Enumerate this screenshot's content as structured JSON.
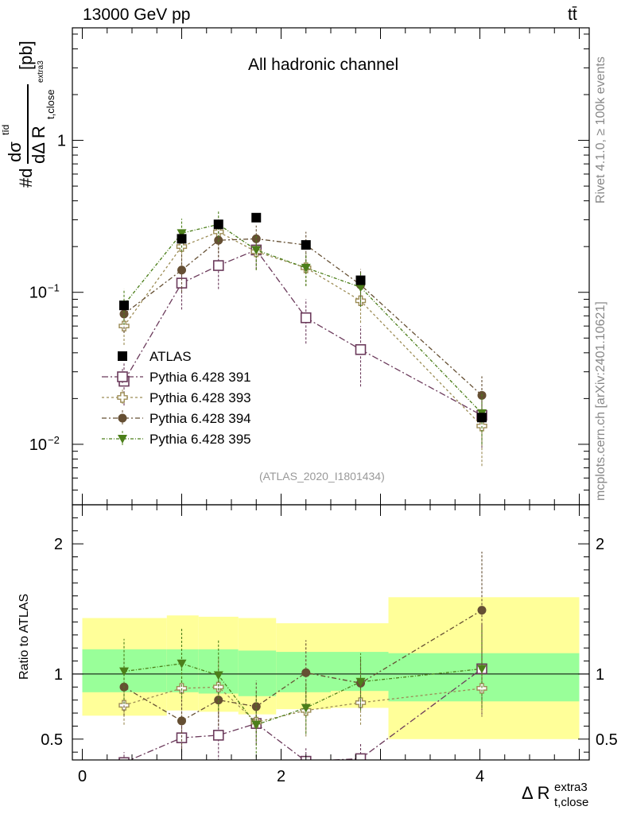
{
  "header": {
    "energy": "13000 GeV pp",
    "process": "tt̄",
    "channel": "All hadronic channel",
    "analysis_tag": "(ATLAS_2020_I1801434)"
  },
  "side": {
    "rivet": "Rivet 4.1.0, ≥ 100k events",
    "mcplots": "mcplots.cern.ch [arXiv:2401.10621]"
  },
  "ylabel": {
    "num": "dσ",
    "num_sup": "tīd",
    "prefix": "#d",
    "den": "dΔ R",
    "den_sub": "t,close",
    "den_subsup": "extra3",
    "unit": "[pb]"
  },
  "xlabel": {
    "main": "Δ R",
    "sup": "extra3",
    "sub": "t,close"
  },
  "ratio_ylabel": "Ratio to ATLAS",
  "colors": {
    "data": "#000000",
    "p391": "#6b3a5b",
    "p393": "#9c8c55",
    "p394": "#654f33",
    "p395": "#4c7f1a",
    "band_inner": "#99ff99",
    "band_outer": "#ffff99"
  },
  "chart_data": [
    {
      "type": "scatter",
      "title": "All hadronic channel",
      "xlabel": "Δ R t,close extra3",
      "ylabel": "#d dσ / dΔ R [pb]",
      "yscale": "log",
      "xlim": [
        -0.1,
        5.1
      ],
      "ylim": [
        0.004,
        5.5
      ],
      "yticks": [
        {
          "value": 1,
          "label": "1"
        },
        {
          "value": 0.1,
          "label": "10",
          "exp": "−1"
        },
        {
          "value": 0.01,
          "label": "10",
          "exp": "−2"
        }
      ],
      "legend_position": "middle-left",
      "series": [
        {
          "name": "ATLAS",
          "marker": "filled-square",
          "color_key": "data",
          "x": [
            0.42,
            1.0,
            1.37,
            1.75,
            2.25,
            2.8,
            4.02
          ],
          "y": [
            0.082,
            0.225,
            0.28,
            0.31,
            0.205,
            0.12,
            0.015
          ]
        },
        {
          "name": "Pythia 6.428 391",
          "marker": "open-square",
          "color_key": "p391",
          "dash": "8,3,2,3",
          "x": [
            0.42,
            1.0,
            1.37,
            1.75,
            2.25,
            2.8,
            4.02
          ],
          "y": [
            0.026,
            0.115,
            0.15,
            0.19,
            0.068,
            0.042,
            0.0155
          ],
          "err": [
            0.008,
            0.038,
            0.045,
            0.048,
            0.022,
            0.018,
            0.006
          ]
        },
        {
          "name": "Pythia 6.428 393",
          "marker": "open-cross",
          "color_key": "p393",
          "dash": "3,3",
          "x": [
            0.42,
            1.0,
            1.37,
            1.75,
            2.25,
            2.8,
            4.02
          ],
          "y": [
            0.06,
            0.2,
            0.25,
            0.185,
            0.145,
            0.088,
            0.0132
          ],
          "err": [
            0.015,
            0.05,
            0.06,
            0.045,
            0.035,
            0.025,
            0.006
          ]
        },
        {
          "name": "Pythia 6.428 394",
          "marker": "filled-circle",
          "color_key": "p394",
          "dash": "6,3,2,3",
          "x": [
            0.42,
            1.0,
            1.37,
            1.75,
            2.25,
            2.8,
            4.02
          ],
          "y": [
            0.072,
            0.14,
            0.22,
            0.225,
            0.205,
            0.112,
            0.021
          ],
          "err": [
            0.018,
            0.04,
            0.05,
            0.05,
            0.045,
            0.03,
            0.007
          ]
        },
        {
          "name": "Pythia 6.428 395",
          "marker": "filled-triangle-down",
          "color_key": "p395",
          "dash": "4,2,1,2",
          "x": [
            0.42,
            1.0,
            1.37,
            1.75,
            2.25,
            2.8,
            4.02
          ],
          "y": [
            0.083,
            0.245,
            0.28,
            0.19,
            0.145,
            0.108,
            0.016
          ],
          "err": [
            0.022,
            0.06,
            0.065,
            0.05,
            0.035,
            0.028,
            0.006
          ]
        }
      ]
    },
    {
      "type": "scatter",
      "title": "",
      "xlabel": "Δ R t,close extra3",
      "ylabel": "Ratio to ATLAS",
      "xlim": [
        -0.1,
        5.1
      ],
      "ylim": [
        0.34,
        2.3
      ],
      "xticks": [
        0,
        2,
        4
      ],
      "yticks": [
        0.5,
        1,
        2
      ],
      "bins": [
        {
          "lo": 0.0,
          "hi": 0.85,
          "inner": [
            0.86,
            1.19
          ],
          "outer": [
            0.68,
            1.43
          ]
        },
        {
          "lo": 0.85,
          "hi": 1.17,
          "inner": [
            0.86,
            1.19
          ],
          "outer": [
            0.72,
            1.45
          ]
        },
        {
          "lo": 1.17,
          "hi": 1.57,
          "inner": [
            0.85,
            1.19
          ],
          "outer": [
            0.71,
            1.44
          ]
        },
        {
          "lo": 1.57,
          "hi": 1.95,
          "inner": [
            0.83,
            1.18
          ],
          "outer": [
            0.69,
            1.43
          ]
        },
        {
          "lo": 1.95,
          "hi": 2.5,
          "inner": [
            0.86,
            1.17
          ],
          "outer": [
            0.73,
            1.39
          ]
        },
        {
          "lo": 2.5,
          "hi": 3.08,
          "inner": [
            0.87,
            1.17
          ],
          "outer": [
            0.74,
            1.39
          ]
        },
        {
          "lo": 3.08,
          "hi": 5.0,
          "inner": [
            0.79,
            1.16
          ],
          "outer": [
            0.5,
            1.59
          ]
        }
      ],
      "series": [
        {
          "name": "Pythia 6.428 391",
          "marker": "open-square",
          "color_key": "p391",
          "dash": "8,3,2,3",
          "x": [
            0.42,
            1.0,
            1.37,
            1.75,
            2.25,
            2.8,
            4.02
          ],
          "y": [
            0.32,
            0.51,
            0.53,
            0.62,
            0.33,
            0.35,
            1.04
          ],
          "err": [
            0.08,
            0.17,
            0.2,
            0.16,
            0.1,
            0.12,
            0.35
          ]
        },
        {
          "name": "Pythia 6.428 393",
          "marker": "open-cross",
          "color_key": "p393",
          "dash": "3,3",
          "x": [
            0.42,
            1.0,
            1.37,
            1.75,
            2.25,
            2.8,
            4.02
          ],
          "y": [
            0.76,
            0.89,
            0.9,
            0.63,
            0.72,
            0.78,
            0.89
          ],
          "err": [
            0.15,
            0.2,
            0.22,
            0.18,
            0.2,
            0.17,
            0.22
          ]
        },
        {
          "name": "Pythia 6.428 394",
          "marker": "filled-circle",
          "color_key": "p394",
          "dash": "6,3,2,3",
          "x": [
            0.42,
            1.0,
            1.37,
            1.75,
            2.25,
            2.8,
            4.02
          ],
          "y": [
            0.9,
            0.64,
            0.8,
            0.75,
            1.01,
            0.93,
            1.49
          ],
          "err": [
            0.22,
            0.25,
            0.2,
            0.2,
            0.25,
            0.2,
            0.45
          ]
        },
        {
          "name": "Pythia 6.428 395",
          "marker": "filled-triangle-down",
          "color_key": "p395",
          "dash": "4,2,1,2",
          "x": [
            0.42,
            1.0,
            1.37,
            1.75,
            2.25,
            2.8,
            4.02
          ],
          "y": [
            1.02,
            1.08,
            0.99,
            0.61,
            0.74,
            0.94,
            1.04
          ],
          "err": [
            0.25,
            0.27,
            0.27,
            0.25,
            0.2,
            0.22,
            0.3
          ]
        }
      ]
    }
  ]
}
